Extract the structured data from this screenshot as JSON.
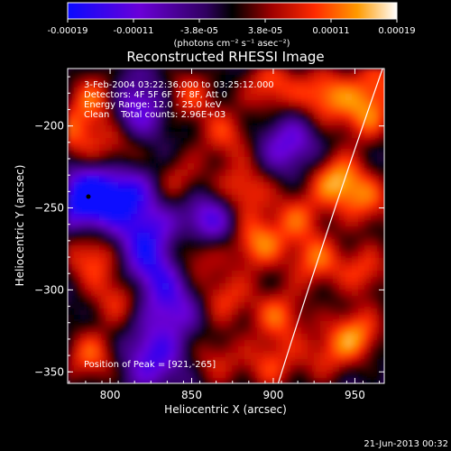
{
  "chart_data": {
    "type": "heatmap",
    "title": "Reconstructed RHESSI Image",
    "xlabel": "Heliocentric X (arcsec)",
    "ylabel": "Heliocentric Y (arcsec)",
    "xlim": [
      774,
      968
    ],
    "ylim": [
      -357,
      -165
    ],
    "x_ticks": [
      "800",
      "850",
      "900",
      "950"
    ],
    "y_ticks": [
      "-200",
      "-250",
      "-300",
      "-350"
    ],
    "colorbar": {
      "ticks": [
        "-0.00019",
        "-0.00011",
        "-3.8e-05",
        "3.8e-05",
        "0.00011",
        "0.00019"
      ],
      "units": "(photons cm⁻² s⁻¹ asec⁻²)",
      "range": [
        -0.00019,
        0.00019
      ]
    },
    "annotations": [
      "3-Feb-2004 03:22:36.000 to 03:25:12.000",
      "Detectors: 4F 5F 6F 7F 8F, Att 0",
      "Energy Range: 12.0 - 25.0 keV",
      "Clean    Total counts: 2.96E+03"
    ],
    "peak_label": "Position of Peak = [921,-265]",
    "peak_position": [
      921,
      -265
    ],
    "timestamp": "21-Jun-2013 00:32",
    "grid": false,
    "colors": {
      "background": "#000000",
      "foreground": "#ffffff",
      "colormap": [
        "#0000ff",
        "#6a00d8",
        "#300060",
        "#000000",
        "#a00000",
        "#ff2a00",
        "#ff9a00",
        "#ffffff"
      ]
    }
  }
}
